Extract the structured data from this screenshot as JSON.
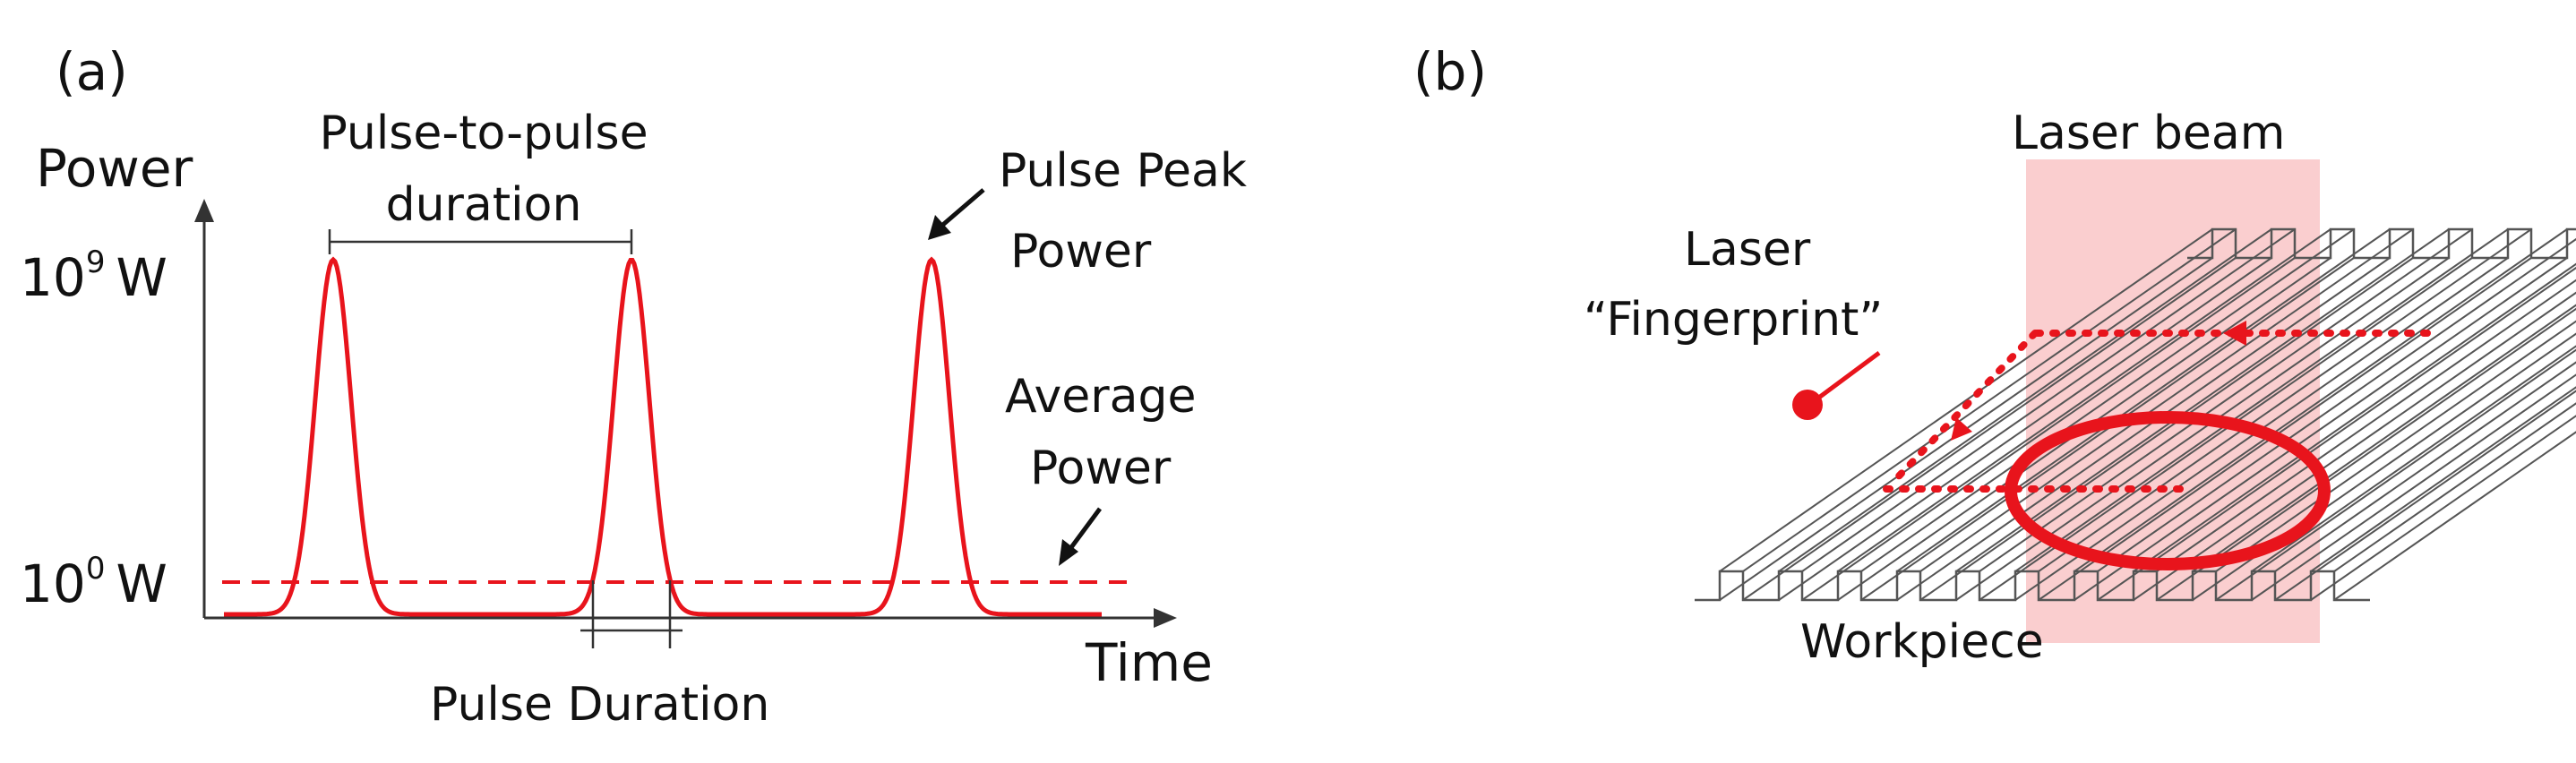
{
  "panel_a": {
    "tag": "(a)",
    "y_axis_label": "Power",
    "x_axis_label": "Time",
    "ytick_high_base": "10",
    "ytick_high_exp": "9",
    "ytick_high_unit": "W",
    "ytick_low_base": "10",
    "ytick_low_exp": "0",
    "ytick_low_unit": "W",
    "annotation_pulse_to_pulse_line1": "Pulse-to-pulse",
    "annotation_pulse_to_pulse_line2": "duration",
    "annotation_peak_line1": "Pulse Peak",
    "annotation_peak_line2": "Power",
    "annotation_average_line1": "Average",
    "annotation_average_line2": "Power",
    "annotation_duration": "Pulse Duration",
    "pulse_color": "#e8141c"
  },
  "panel_b": {
    "tag": "(b)",
    "label_beam": "Laser beam",
    "label_fingerprint_line1": "Laser",
    "label_fingerprint_line2": "“Fingerprint”",
    "label_workpiece": "Workpiece",
    "beam_color": "#f9c5c7",
    "path_color": "#e8141c"
  }
}
